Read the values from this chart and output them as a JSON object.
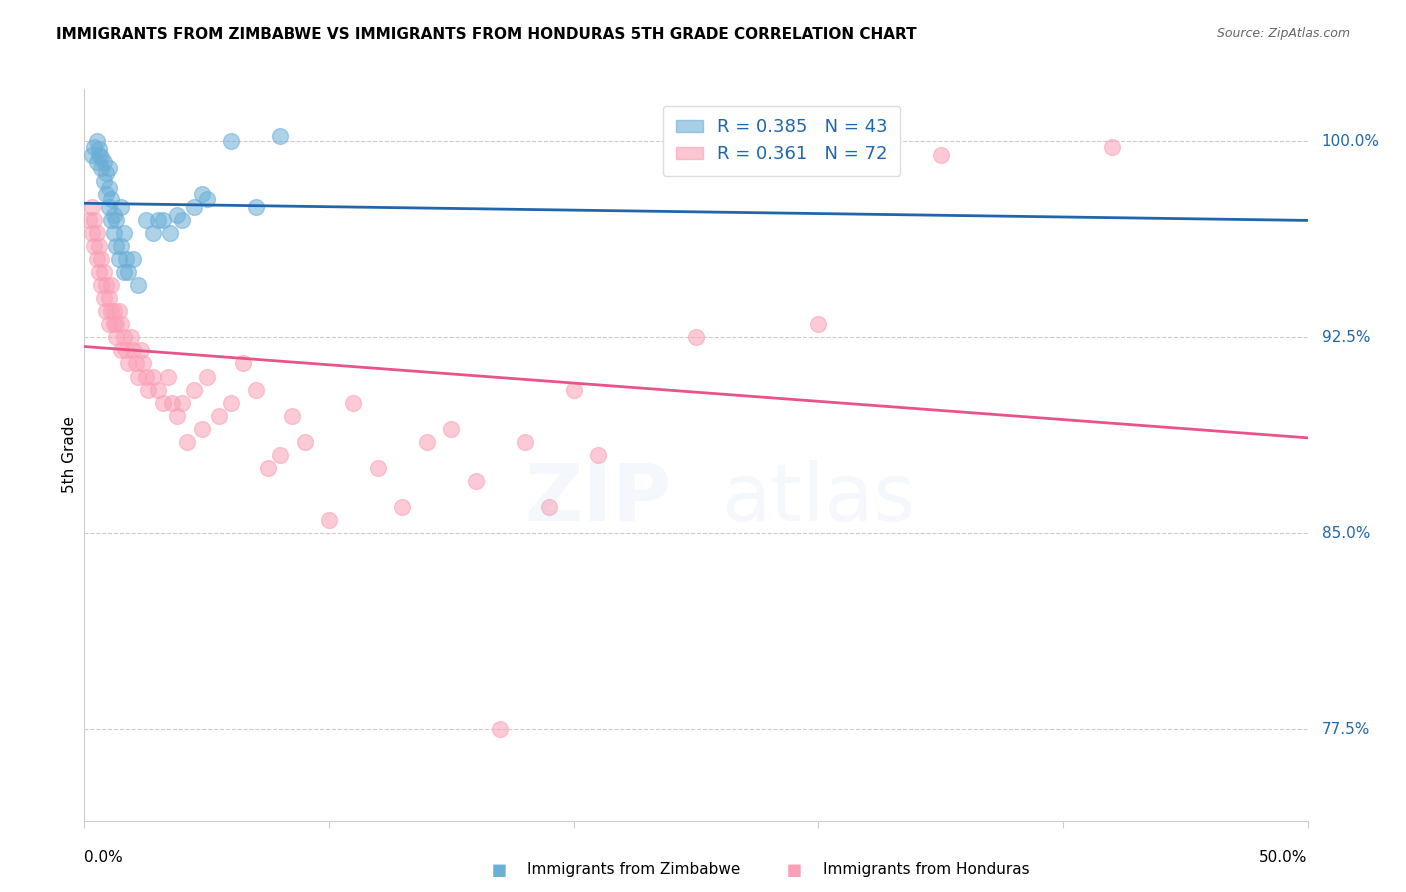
{
  "title": "IMMIGRANTS FROM ZIMBABWE VS IMMIGRANTS FROM HONDURAS 5TH GRADE CORRELATION CHART",
  "source": "Source: ZipAtlas.com",
  "ylabel": "5th Grade",
  "yticks": [
    77.5,
    85.0,
    92.5,
    100.0
  ],
  "ytick_labels": [
    "77.5%",
    "85.0%",
    "92.5%",
    "100.0%"
  ],
  "xmin": 0.0,
  "xmax": 0.5,
  "ymin": 74.0,
  "ymax": 102.0,
  "legend_r1": "R = 0.385",
  "legend_n1": "N = 43",
  "legend_r2": "R = 0.361",
  "legend_n2": "N = 72",
  "zimbabwe_color": "#6baed6",
  "honduras_color": "#fa9fb5",
  "zimbabwe_line_color": "#2166ac",
  "honduras_line_color": "#e8538a",
  "legend_text_color": "#2166ac",
  "grid_color": "#cccccc",
  "watermark_color": "#b0c8e8",
  "zimbabwe_scatter_x": [
    0.003,
    0.004,
    0.005,
    0.005,
    0.006,
    0.006,
    0.007,
    0.007,
    0.008,
    0.008,
    0.009,
    0.009,
    0.01,
    0.01,
    0.01,
    0.011,
    0.011,
    0.012,
    0.012,
    0.013,
    0.013,
    0.014,
    0.015,
    0.015,
    0.016,
    0.016,
    0.017,
    0.018,
    0.02,
    0.022,
    0.025,
    0.028,
    0.03,
    0.032,
    0.035,
    0.038,
    0.04,
    0.045,
    0.048,
    0.05,
    0.06,
    0.07,
    0.08
  ],
  "zimbabwe_scatter_y": [
    99.5,
    99.8,
    100.0,
    99.2,
    99.5,
    99.7,
    99.0,
    99.4,
    98.5,
    99.2,
    98.0,
    98.8,
    97.5,
    98.2,
    99.0,
    97.0,
    97.8,
    96.5,
    97.2,
    96.0,
    97.0,
    95.5,
    96.0,
    97.5,
    95.0,
    96.5,
    95.5,
    95.0,
    95.5,
    94.5,
    97.0,
    96.5,
    97.0,
    97.0,
    96.5,
    97.2,
    97.0,
    97.5,
    98.0,
    97.8,
    100.0,
    97.5,
    100.2
  ],
  "honduras_scatter_x": [
    0.002,
    0.003,
    0.003,
    0.004,
    0.004,
    0.005,
    0.005,
    0.006,
    0.006,
    0.007,
    0.007,
    0.008,
    0.008,
    0.009,
    0.009,
    0.01,
    0.01,
    0.011,
    0.011,
    0.012,
    0.012,
    0.013,
    0.013,
    0.014,
    0.015,
    0.015,
    0.016,
    0.017,
    0.018,
    0.019,
    0.02,
    0.021,
    0.022,
    0.023,
    0.024,
    0.025,
    0.026,
    0.028,
    0.03,
    0.032,
    0.034,
    0.036,
    0.038,
    0.04,
    0.042,
    0.045,
    0.048,
    0.05,
    0.055,
    0.06,
    0.065,
    0.07,
    0.075,
    0.08,
    0.085,
    0.09,
    0.1,
    0.11,
    0.12,
    0.13,
    0.14,
    0.15,
    0.16,
    0.17,
    0.18,
    0.19,
    0.2,
    0.21,
    0.25,
    0.3,
    0.35,
    0.42
  ],
  "honduras_scatter_y": [
    97.0,
    96.5,
    97.5,
    96.0,
    97.0,
    95.5,
    96.5,
    95.0,
    96.0,
    94.5,
    95.5,
    94.0,
    95.0,
    93.5,
    94.5,
    93.0,
    94.0,
    93.5,
    94.5,
    93.0,
    93.5,
    93.0,
    92.5,
    93.5,
    92.0,
    93.0,
    92.5,
    92.0,
    91.5,
    92.5,
    92.0,
    91.5,
    91.0,
    92.0,
    91.5,
    91.0,
    90.5,
    91.0,
    90.5,
    90.0,
    91.0,
    90.0,
    89.5,
    90.0,
    88.5,
    90.5,
    89.0,
    91.0,
    89.5,
    90.0,
    91.5,
    90.5,
    87.5,
    88.0,
    89.5,
    88.5,
    85.5,
    90.0,
    87.5,
    86.0,
    88.5,
    89.0,
    87.0,
    77.5,
    88.5,
    86.0,
    90.5,
    88.0,
    92.5,
    93.0,
    99.5,
    99.8
  ]
}
